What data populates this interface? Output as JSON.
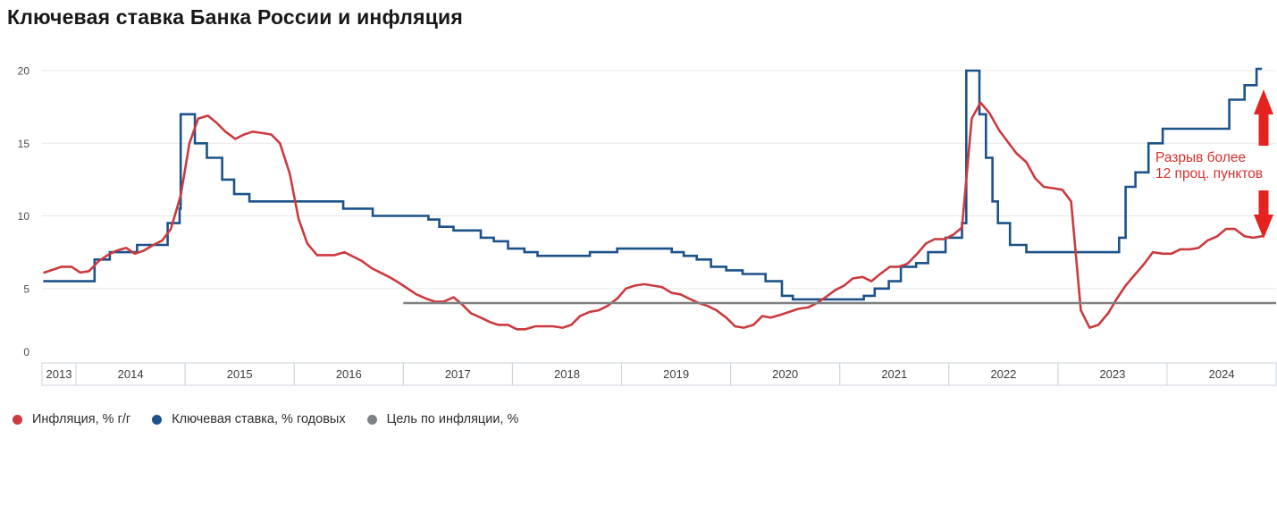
{
  "title": "Ключевая ставка Банка России и инфляция",
  "legend": [
    {
      "label": "Инфляция, % г/г",
      "color": "#cb3a3e"
    },
    {
      "label": "Ключевая ставка, % годовых",
      "color": "#1c5289"
    },
    {
      "label": "Цель по инфляции, %",
      "color": "#7e8286"
    }
  ],
  "annotation": {
    "line1": "Разрыв более",
    "line2": "12 проц. пунктов",
    "text_color": "#d6312e",
    "arrow_color": "#e42320"
  },
  "chart_data": {
    "type": "line",
    "title": "Ключевая ставка Банка России и инфляция",
    "xlabel": "",
    "ylabel": "",
    "ylim": [
      0,
      20
    ],
    "y_ticks": [
      0,
      5,
      10,
      15,
      20
    ],
    "x_years": [
      2013,
      2014,
      2015,
      2016,
      2017,
      2018,
      2019,
      2020,
      2021,
      2022,
      2023,
      2024
    ],
    "grid_color": "#e8e8e8",
    "axis_color": "#ccd5df",
    "legend_position": "bottom",
    "series": [
      {
        "name": "Ключевая ставка, % годовых",
        "type": "step",
        "color": "#1c5289",
        "x_end": 2024.87,
        "points": [
          [
            2013.7,
            5.5
          ],
          [
            2014.17,
            7.0
          ],
          [
            2014.31,
            7.5
          ],
          [
            2014.56,
            8.0
          ],
          [
            2014.84,
            9.5
          ],
          [
            2014.95,
            10.5
          ],
          [
            2014.96,
            17.0
          ],
          [
            2015.09,
            15.0
          ],
          [
            2015.2,
            14.0
          ],
          [
            2015.34,
            12.5
          ],
          [
            2015.45,
            11.5
          ],
          [
            2015.59,
            11.0
          ],
          [
            2016.45,
            10.5
          ],
          [
            2016.72,
            10.0
          ],
          [
            2017.23,
            9.75
          ],
          [
            2017.33,
            9.25
          ],
          [
            2017.46,
            9.0
          ],
          [
            2017.71,
            8.5
          ],
          [
            2017.83,
            8.25
          ],
          [
            2017.96,
            7.75
          ],
          [
            2018.11,
            7.5
          ],
          [
            2018.23,
            7.25
          ],
          [
            2018.71,
            7.5
          ],
          [
            2018.96,
            7.75
          ],
          [
            2019.46,
            7.5
          ],
          [
            2019.57,
            7.25
          ],
          [
            2019.69,
            7.0
          ],
          [
            2019.82,
            6.5
          ],
          [
            2019.96,
            6.25
          ],
          [
            2020.11,
            6.0
          ],
          [
            2020.32,
            5.5
          ],
          [
            2020.47,
            4.5
          ],
          [
            2020.57,
            4.25
          ],
          [
            2021.22,
            4.5
          ],
          [
            2021.32,
            5.0
          ],
          [
            2021.45,
            5.5
          ],
          [
            2021.56,
            6.5
          ],
          [
            2021.7,
            6.75
          ],
          [
            2021.81,
            7.5
          ],
          [
            2021.97,
            8.5
          ],
          [
            2022.12,
            9.5
          ],
          [
            2022.16,
            20.0
          ],
          [
            2022.28,
            17.0
          ],
          [
            2022.34,
            14.0
          ],
          [
            2022.4,
            11.0
          ],
          [
            2022.45,
            9.5
          ],
          [
            2022.56,
            8.0
          ],
          [
            2022.71,
            7.5
          ],
          [
            2023.56,
            8.5
          ],
          [
            2023.62,
            12.0
          ],
          [
            2023.71,
            13.0
          ],
          [
            2023.83,
            15.0
          ],
          [
            2023.96,
            16.0
          ],
          [
            2024.57,
            18.0
          ],
          [
            2024.71,
            19.0
          ],
          [
            2024.82,
            21.0
          ]
        ]
      },
      {
        "name": "Инфляция, % г/г",
        "type": "line",
        "color": "#cb3a3e",
        "points": [
          [
            2013.71,
            6.1
          ],
          [
            2013.79,
            6.3
          ],
          [
            2013.87,
            6.5
          ],
          [
            2013.96,
            6.5
          ],
          [
            2014.04,
            6.1
          ],
          [
            2014.12,
            6.2
          ],
          [
            2014.21,
            6.9
          ],
          [
            2014.29,
            7.3
          ],
          [
            2014.37,
            7.6
          ],
          [
            2014.46,
            7.8
          ],
          [
            2014.54,
            7.4
          ],
          [
            2014.62,
            7.6
          ],
          [
            2014.71,
            8.0
          ],
          [
            2014.79,
            8.3
          ],
          [
            2014.87,
            9.1
          ],
          [
            2014.96,
            11.4
          ],
          [
            2015.04,
            15.0
          ],
          [
            2015.12,
            16.7
          ],
          [
            2015.21,
            16.9
          ],
          [
            2015.29,
            16.4
          ],
          [
            2015.37,
            15.8
          ],
          [
            2015.46,
            15.3
          ],
          [
            2015.54,
            15.6
          ],
          [
            2015.62,
            15.8
          ],
          [
            2015.71,
            15.7
          ],
          [
            2015.79,
            15.6
          ],
          [
            2015.87,
            15.0
          ],
          [
            2015.96,
            12.9
          ],
          [
            2016.04,
            9.8
          ],
          [
            2016.12,
            8.1
          ],
          [
            2016.21,
            7.3
          ],
          [
            2016.29,
            7.3
          ],
          [
            2016.37,
            7.3
          ],
          [
            2016.46,
            7.5
          ],
          [
            2016.54,
            7.2
          ],
          [
            2016.62,
            6.9
          ],
          [
            2016.71,
            6.4
          ],
          [
            2016.79,
            6.1
          ],
          [
            2016.87,
            5.8
          ],
          [
            2016.96,
            5.4
          ],
          [
            2017.04,
            5.0
          ],
          [
            2017.12,
            4.6
          ],
          [
            2017.21,
            4.3
          ],
          [
            2017.29,
            4.1
          ],
          [
            2017.37,
            4.1
          ],
          [
            2017.46,
            4.4
          ],
          [
            2017.54,
            3.9
          ],
          [
            2017.62,
            3.3
          ],
          [
            2017.71,
            3.0
          ],
          [
            2017.79,
            2.7
          ],
          [
            2017.87,
            2.5
          ],
          [
            2017.96,
            2.5
          ],
          [
            2018.04,
            2.2
          ],
          [
            2018.12,
            2.2
          ],
          [
            2018.21,
            2.4
          ],
          [
            2018.29,
            2.4
          ],
          [
            2018.37,
            2.4
          ],
          [
            2018.46,
            2.3
          ],
          [
            2018.54,
            2.5
          ],
          [
            2018.62,
            3.1
          ],
          [
            2018.71,
            3.4
          ],
          [
            2018.79,
            3.5
          ],
          [
            2018.87,
            3.8
          ],
          [
            2018.96,
            4.3
          ],
          [
            2019.04,
            5.0
          ],
          [
            2019.12,
            5.2
          ],
          [
            2019.21,
            5.3
          ],
          [
            2019.29,
            5.2
          ],
          [
            2019.37,
            5.1
          ],
          [
            2019.46,
            4.7
          ],
          [
            2019.54,
            4.6
          ],
          [
            2019.62,
            4.3
          ],
          [
            2019.71,
            4.0
          ],
          [
            2019.79,
            3.8
          ],
          [
            2019.87,
            3.5
          ],
          [
            2019.96,
            3.0
          ],
          [
            2020.04,
            2.4
          ],
          [
            2020.12,
            2.3
          ],
          [
            2020.21,
            2.5
          ],
          [
            2020.29,
            3.1
          ],
          [
            2020.37,
            3.0
          ],
          [
            2020.46,
            3.2
          ],
          [
            2020.54,
            3.4
          ],
          [
            2020.62,
            3.6
          ],
          [
            2020.71,
            3.7
          ],
          [
            2020.79,
            4.0
          ],
          [
            2020.87,
            4.4
          ],
          [
            2020.96,
            4.9
          ],
          [
            2021.04,
            5.2
          ],
          [
            2021.12,
            5.7
          ],
          [
            2021.21,
            5.8
          ],
          [
            2021.29,
            5.5
          ],
          [
            2021.37,
            6.0
          ],
          [
            2021.46,
            6.5
          ],
          [
            2021.54,
            6.5
          ],
          [
            2021.62,
            6.7
          ],
          [
            2021.71,
            7.4
          ],
          [
            2021.79,
            8.1
          ],
          [
            2021.87,
            8.4
          ],
          [
            2021.96,
            8.4
          ],
          [
            2022.04,
            8.7
          ],
          [
            2022.12,
            9.2
          ],
          [
            2022.21,
            16.7
          ],
          [
            2022.29,
            17.8
          ],
          [
            2022.37,
            17.1
          ],
          [
            2022.46,
            15.9
          ],
          [
            2022.54,
            15.1
          ],
          [
            2022.62,
            14.3
          ],
          [
            2022.71,
            13.7
          ],
          [
            2022.79,
            12.6
          ],
          [
            2022.87,
            12.0
          ],
          [
            2022.96,
            11.9
          ],
          [
            2023.04,
            11.8
          ],
          [
            2023.12,
            11.0
          ],
          [
            2023.21,
            3.5
          ],
          [
            2023.29,
            2.3
          ],
          [
            2023.37,
            2.5
          ],
          [
            2023.46,
            3.3
          ],
          [
            2023.54,
            4.3
          ],
          [
            2023.62,
            5.2
          ],
          [
            2023.71,
            6.0
          ],
          [
            2023.79,
            6.7
          ],
          [
            2023.87,
            7.5
          ],
          [
            2023.96,
            7.4
          ],
          [
            2024.04,
            7.4
          ],
          [
            2024.12,
            7.7
          ],
          [
            2024.21,
            7.7
          ],
          [
            2024.29,
            7.8
          ],
          [
            2024.37,
            8.3
          ],
          [
            2024.46,
            8.6
          ],
          [
            2024.54,
            9.1
          ],
          [
            2024.62,
            9.1
          ],
          [
            2024.71,
            8.6
          ],
          [
            2024.79,
            8.5
          ],
          [
            2024.87,
            8.6
          ]
        ]
      },
      {
        "name": "Цель по инфляции, %",
        "type": "hline",
        "color": "#808080",
        "value": 4.0,
        "x_start": 2017.0,
        "x_end": 2025.0
      }
    ]
  }
}
